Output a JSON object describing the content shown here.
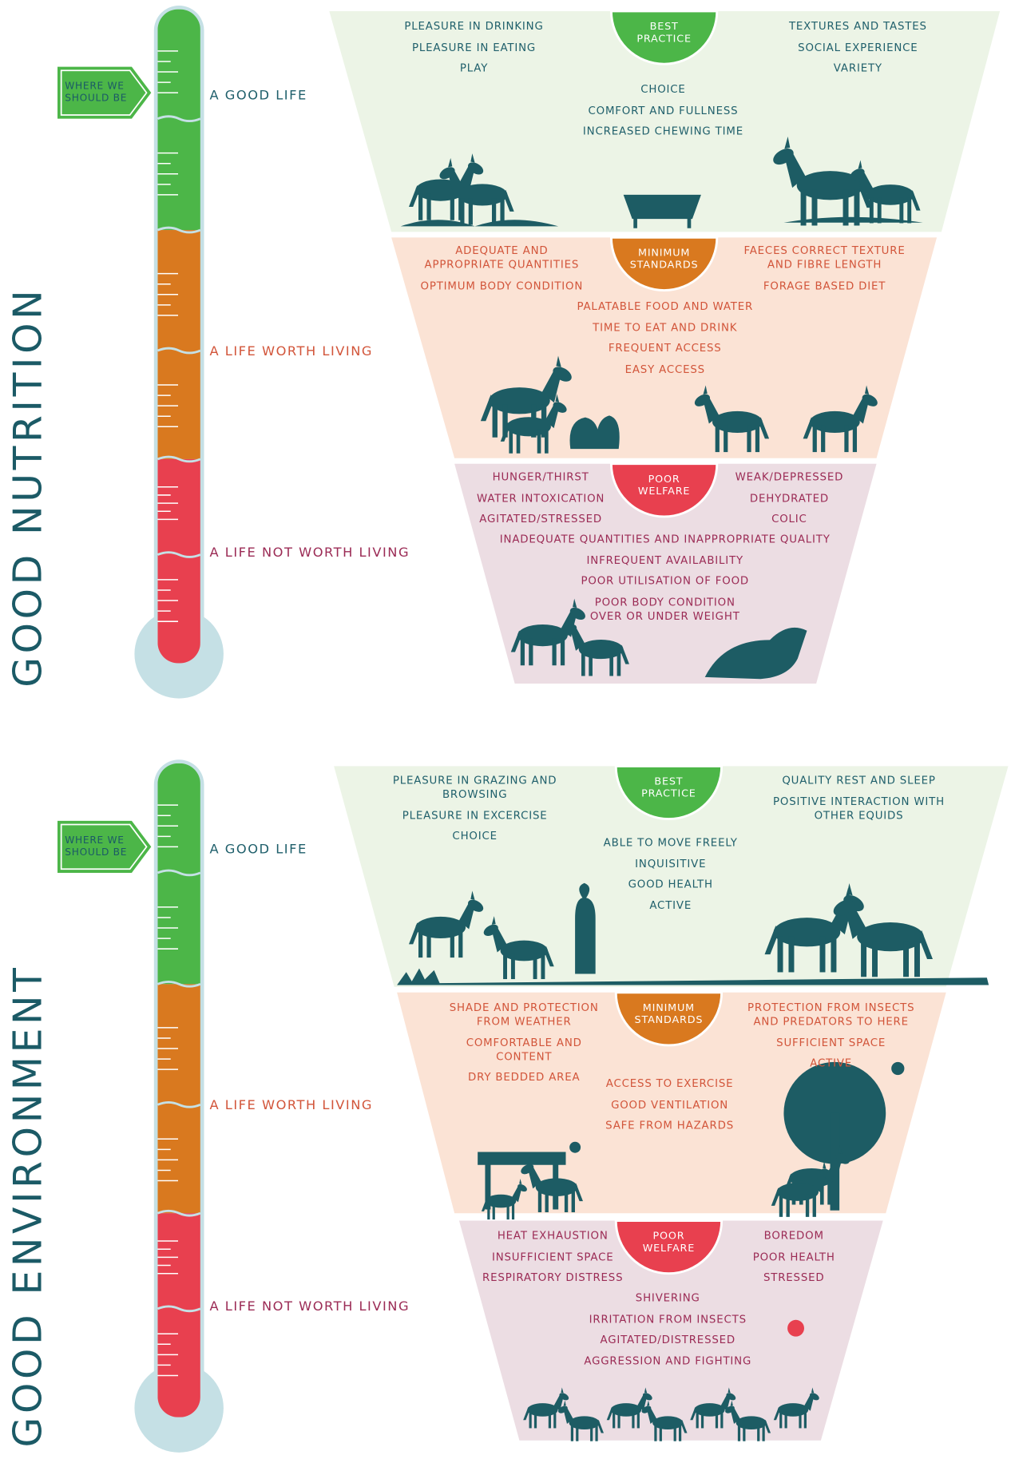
{
  "sections": [
    {
      "title": "GOOD NUTRITION",
      "marker": "WHERE WE SHOULD BE",
      "scale": [
        "A GOOD LIFE",
        "A LIFE WORTH LIVING",
        "A LIFE NOT WORTH LIVING"
      ],
      "tiers": [
        {
          "badge": "BEST PRACTICE",
          "left": [
            "PLEASURE IN DRINKING",
            "PLEASURE IN EATING",
            "PLAY"
          ],
          "right": [
            "TEXTURES AND TASTES",
            "SOCIAL EXPERIENCE",
            "VARIETY"
          ],
          "center": [
            "CHOICE",
            "COMFORT AND FULLNESS",
            "INCREASED CHEWING TIME"
          ]
        },
        {
          "badge": "MINIMUM STANDARDS",
          "left": [
            "ADEQUATE AND APPROPRIATE QUANTITIES",
            "OPTIMUM BODY CONDITION"
          ],
          "right": [
            "FAECES CORRECT TEXTURE AND FIBRE LENGTH",
            "FORAGE BASED DIET"
          ],
          "center": [
            "PALATABLE FOOD AND WATER",
            "TIME TO EAT AND DRINK",
            "FREQUENT ACCESS",
            "EASY ACCESS"
          ]
        },
        {
          "badge": "POOR WELFARE",
          "left": [
            "HUNGER/THIRST",
            "WATER INTOXICATION",
            "AGITATED/STRESSED"
          ],
          "right": [
            "WEAK/DEPRESSED",
            "DEHYDRATED",
            "COLIC"
          ],
          "center": [
            "INADEQUATE QUANTITIES AND INAPPROPRIATE QUALITY",
            "INFREQUENT AVAILABILITY",
            "POOR UTILISATION OF FOOD",
            "POOR BODY CONDITION OVER OR UNDER WEIGHT"
          ]
        }
      ]
    },
    {
      "title": "GOOD ENVIRONMENT",
      "marker": "WHERE WE SHOULD BE",
      "scale": [
        "A GOOD LIFE",
        "A LIFE WORTH LIVING",
        "A LIFE NOT WORTH LIVING"
      ],
      "tiers": [
        {
          "badge": "BEST PRACTICE",
          "left": [
            "PLEASURE IN GRAZING AND BROWSING",
            "PLEASURE IN EXCERCISE",
            "CHOICE"
          ],
          "right": [
            "QUALITY REST AND SLEEP",
            "POSITIVE INTERACTION WITH OTHER EQUIDS"
          ],
          "center": [
            "ABLE TO MOVE FREELY",
            "INQUISITIVE",
            "GOOD HEALTH",
            "ACTIVE"
          ]
        },
        {
          "badge": "MINIMUM STANDARDS",
          "left": [
            "SHADE AND PROTECTION FROM WEATHER",
            "COMFORTABLE AND CONTENT",
            "DRY BEDDED AREA"
          ],
          "right": [
            "PROTECTION FROM INSECTS AND PREDATORS TO HERE",
            "SUFFICIENT SPACE",
            "ACTIVE"
          ],
          "center": [
            "ACCESS TO EXERCISE",
            "GOOD VENTILATION",
            "SAFE FROM HAZARDS"
          ]
        },
        {
          "badge": "POOR WELFARE",
          "left": [
            "HEAT EXHAUSTION",
            "INSUFFICIENT SPACE",
            "RESPIRATORY DISTRESS"
          ],
          "right": [
            "BOREDOM",
            "POOR HEALTH",
            "STRESSED"
          ],
          "center": [
            "SHIVERING",
            "IRRITATION FROM INSECTS",
            "AGITATED/DISTRESSED",
            "AGGRESSION AND FIGHTING"
          ]
        }
      ]
    }
  ]
}
